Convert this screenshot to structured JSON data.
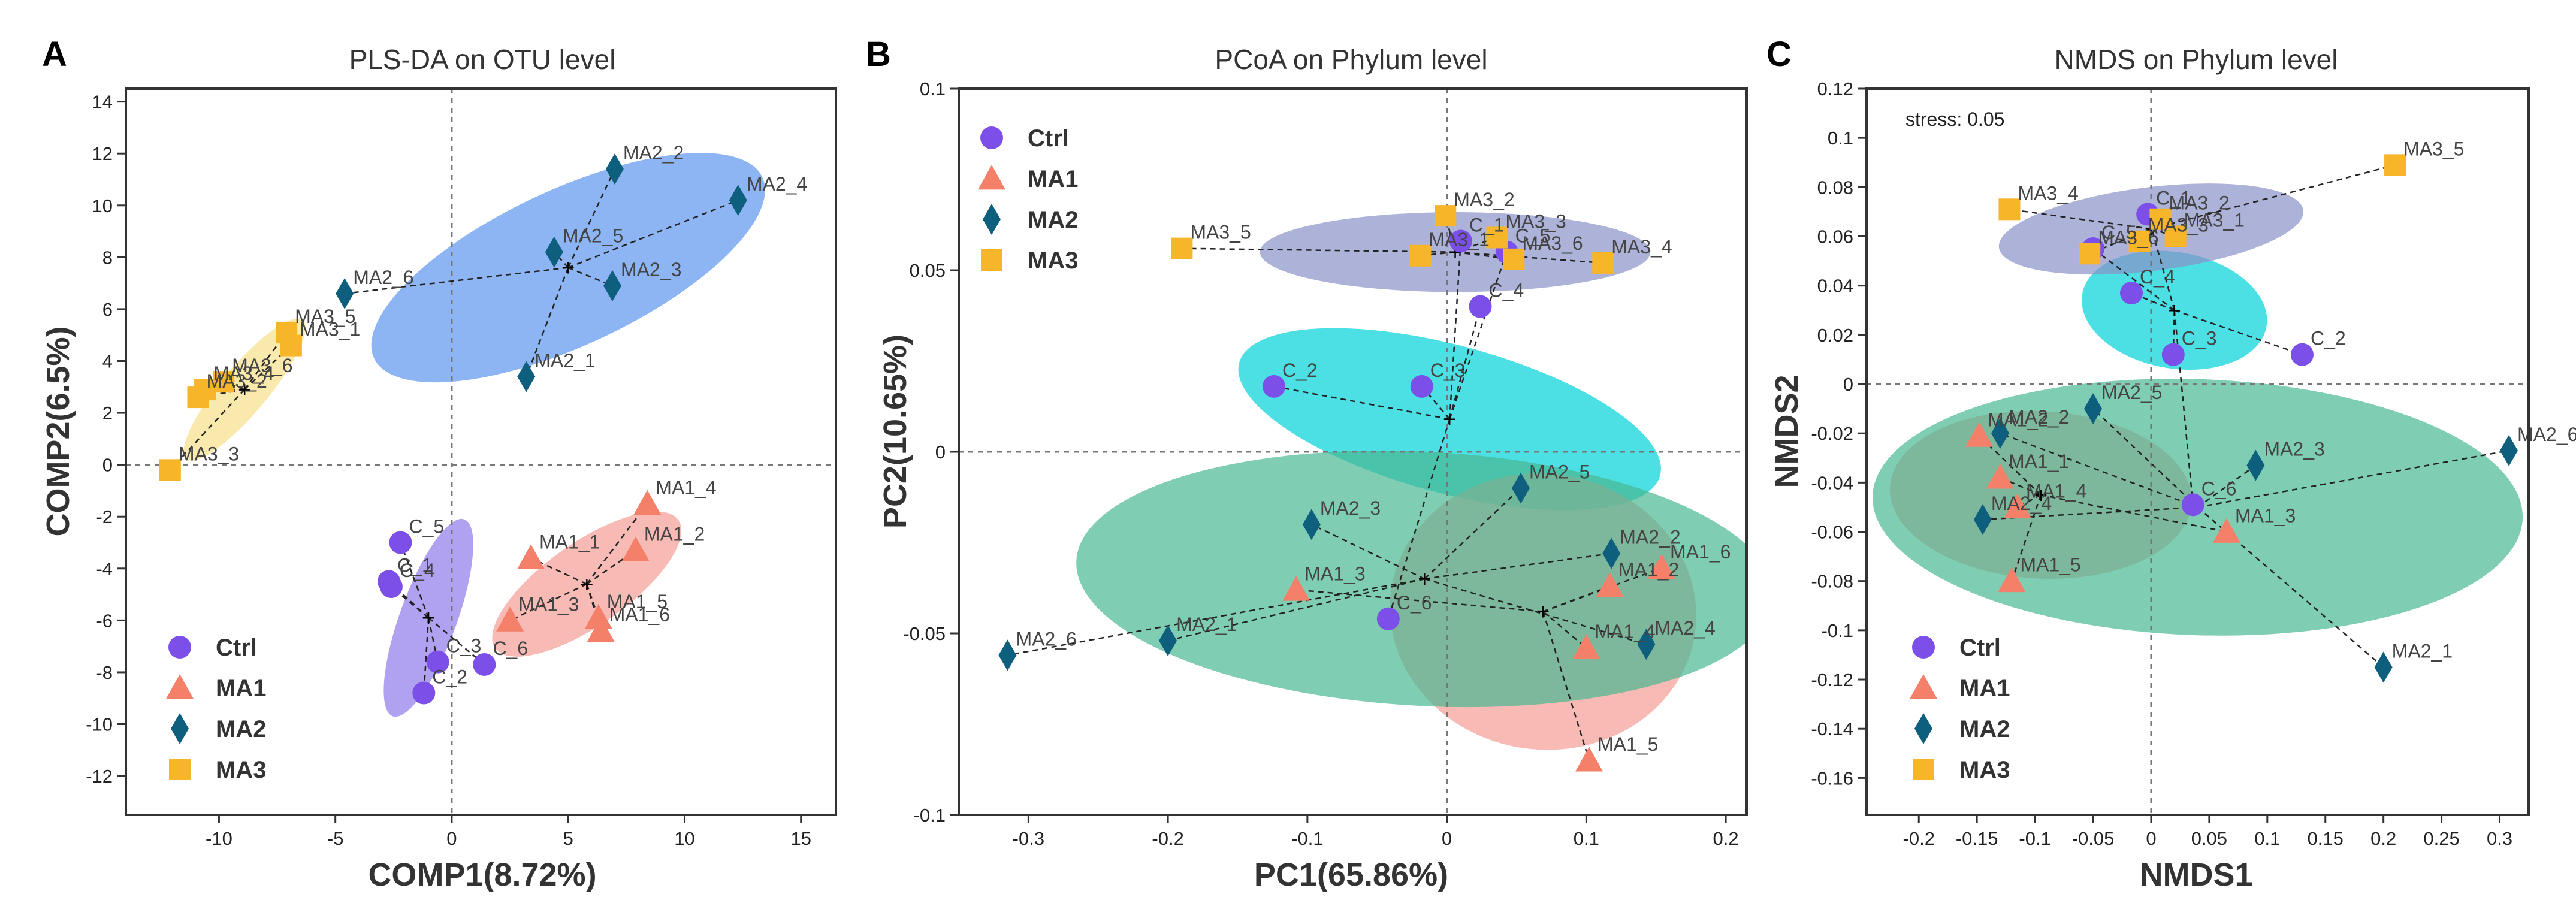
{
  "colors": {
    "Ctrl": "#7B4FE8",
    "MA1": "#F4806A",
    "MA2": "#0E5E7E",
    "MA3": "#F7B52A"
  },
  "ellipse_colors": {
    "Ctrl": "#8E7BEA",
    "MA1": "#F49C94",
    "MA2": "#48B891",
    "MA3": "#F8DF8A",
    "MA2b": "#5C95EE",
    "Ctrlb": "#00D2D8",
    "MA3b": "#8A92C8"
  },
  "chart_data": [
    {
      "type": "scatter",
      "panel": "A",
      "title": "PLS-DA on OTU level",
      "xlabel": "COMP1(8.72%)",
      "ylabel": "COMP2(6.5%)",
      "xlim": [
        -14,
        16.5
      ],
      "ylim": [
        -13.5,
        14.5
      ],
      "xticks": [
        -10,
        -5,
        0,
        5,
        10,
        15
      ],
      "yticks": [
        -12,
        -10,
        -8,
        -6,
        -4,
        -2,
        0,
        2,
        4,
        6,
        8,
        10,
        12,
        14
      ],
      "legend_position": "bottom-left",
      "series": [
        {
          "name": "Ctrl",
          "centroid": [
            -1.0,
            -5.9
          ],
          "ellipse": {
            "cx": -1.0,
            "cy": -5.9,
            "rx": 4.5,
            "ry": 1.1,
            "angle": 70,
            "color": "Ctrl"
          },
          "points": [
            {
              "label": "C_5",
              "x": -2.2,
              "y": -3.0
            },
            {
              "label": "C_1",
              "x": -2.7,
              "y": -4.5
            },
            {
              "label": "C_4",
              "x": -2.6,
              "y": -4.7
            },
            {
              "label": "C_3",
              "x": -0.6,
              "y": -7.6
            },
            {
              "label": "C_2",
              "x": -1.2,
              "y": -8.8
            },
            {
              "label": "C_6",
              "x": 1.4,
              "y": -7.7
            }
          ]
        },
        {
          "name": "MA1",
          "centroid": [
            5.8,
            -4.6
          ],
          "ellipse": {
            "cx": 5.8,
            "cy": -4.6,
            "rx": 4.8,
            "ry": 1.6,
            "angle": 35,
            "color": "MA1"
          },
          "points": [
            {
              "label": "MA1_4",
              "x": 8.4,
              "y": -1.5
            },
            {
              "label": "MA1_1",
              "x": 3.4,
              "y": -3.6
            },
            {
              "label": "MA1_2",
              "x": 7.9,
              "y": -3.3
            },
            {
              "label": "MA1_3",
              "x": 2.5,
              "y": -6.0
            },
            {
              "label": "MA1_5",
              "x": 6.3,
              "y": -5.9
            },
            {
              "label": "MA1_6",
              "x": 6.4,
              "y": -6.4
            }
          ]
        },
        {
          "name": "MA2",
          "centroid": [
            5.0,
            7.6
          ],
          "ellipse": {
            "cx": 5.0,
            "cy": 7.6,
            "rx": 9.2,
            "ry": 3.0,
            "angle": 25,
            "color": "MA2b"
          },
          "points": [
            {
              "label": "MA2_2",
              "x": 7.0,
              "y": 11.4
            },
            {
              "label": "MA2_4",
              "x": 12.3,
              "y": 10.2
            },
            {
              "label": "MA2_5",
              "x": 4.4,
              "y": 8.2
            },
            {
              "label": "MA2_3",
              "x": 6.9,
              "y": 6.9
            },
            {
              "label": "MA2_6",
              "x": -4.6,
              "y": 6.6
            },
            {
              "label": "MA2_1",
              "x": 3.2,
              "y": 3.4
            }
          ]
        },
        {
          "name": "MA3",
          "centroid": [
            -8.9,
            2.9
          ],
          "ellipse": {
            "cx": -8.9,
            "cy": 2.9,
            "rx": 3.9,
            "ry": 0.9,
            "angle": 50,
            "color": "MA3"
          },
          "points": [
            {
              "label": "MA3_5",
              "x": -7.1,
              "y": 5.1
            },
            {
              "label": "MA3_1",
              "x": -6.9,
              "y": 4.6
            },
            {
              "label": "MA3_4",
              "x": -10.6,
              "y": 2.9
            },
            {
              "label": "MA3_6",
              "x": -9.8,
              "y": 3.2
            },
            {
              "label": "MA3_2",
              "x": -10.9,
              "y": 2.6
            },
            {
              "label": "MA3_3",
              "x": -12.1,
              "y": -0.2
            }
          ]
        }
      ]
    },
    {
      "type": "scatter",
      "panel": "B",
      "title": "PCoA on Phylum level",
      "xlabel": "PC1(65.86%)",
      "ylabel": "PC2(10.65%)",
      "xlim": [
        -0.35,
        0.215
      ],
      "ylim": [
        -0.1,
        0.1
      ],
      "xticks": [
        -0.3,
        -0.2,
        -0.1,
        0,
        0.1,
        0.2
      ],
      "yticks": [
        -0.1,
        -0.05,
        0,
        0.05,
        0.1
      ],
      "legend_position": "top-left",
      "series": [
        {
          "name": "Ctrl",
          "centroid": [
            0.002,
            0.009
          ],
          "ellipse": {
            "cx": 0.002,
            "cy": 0.009,
            "rx": 0.053,
            "ry": 0.06,
            "angle": 75,
            "color": "Ctrlb"
          },
          "points": [
            {
              "label": "C_1",
              "x": 0.01,
              "y": 0.058
            },
            {
              "label": "C_5",
              "x": 0.043,
              "y": 0.055
            },
            {
              "label": "C_4",
              "x": 0.024,
              "y": 0.04
            },
            {
              "label": "C_3",
              "x": -0.018,
              "y": 0.018
            },
            {
              "label": "C_2",
              "x": -0.124,
              "y": 0.018
            },
            {
              "label": "C_6",
              "x": -0.042,
              "y": -0.046
            }
          ]
        },
        {
          "name": "MA1",
          "centroid": [
            0.069,
            -0.044
          ],
          "ellipse": {
            "cx": 0.069,
            "cy": -0.044,
            "rx": 0.11,
            "ry": 0.038,
            "angle": -8,
            "color": "MA1"
          },
          "points": [
            {
              "label": "MA1_3",
              "x": -0.108,
              "y": -0.038
            },
            {
              "label": "MA1_4",
              "x": 0.1,
              "y": -0.054
            },
            {
              "label": "MA1_2",
              "x": 0.117,
              "y": -0.037
            },
            {
              "label": "MA1_6",
              "x": 0.154,
              "y": -0.032
            },
            {
              "label": "MA1_5",
              "x": 0.102,
              "y": -0.085
            }
          ]
        },
        {
          "name": "MA2",
          "centroid": [
            -0.016,
            -0.035
          ],
          "ellipse": {
            "cx": -0.016,
            "cy": -0.035,
            "rx": 0.25,
            "ry": 0.035,
            "angle": -3,
            "color": "MA2"
          },
          "points": [
            {
              "label": "MA2_5",
              "x": 0.053,
              "y": -0.01
            },
            {
              "label": "MA2_3",
              "x": -0.097,
              "y": -0.02
            },
            {
              "label": "MA2_2",
              "x": 0.118,
              "y": -0.028
            },
            {
              "label": "MA2_1",
              "x": -0.2,
              "y": -0.052
            },
            {
              "label": "MA2_6",
              "x": -0.315,
              "y": -0.056
            },
            {
              "label": "MA2_4",
              "x": 0.143,
              "y": -0.053
            }
          ]
        },
        {
          "name": "MA3",
          "centroid": [
            0.006,
            0.055
          ],
          "ellipse": {
            "cx": 0.006,
            "cy": 0.055,
            "rx": 0.14,
            "ry": 0.011,
            "angle": 0,
            "color": "MA3b"
          },
          "points": [
            {
              "label": "MA3_5",
              "x": -0.19,
              "y": 0.056
            },
            {
              "label": "MA3_2",
              "x": -0.001,
              "y": 0.065
            },
            {
              "label": "MA3_1",
              "x": -0.019,
              "y": 0.054
            },
            {
              "label": "MA3_3",
              "x": 0.036,
              "y": 0.059
            },
            {
              "label": "MA3_6",
              "x": 0.048,
              "y": 0.053
            },
            {
              "label": "MA3_4",
              "x": 0.112,
              "y": 0.052
            }
          ]
        }
      ]
    },
    {
      "type": "scatter",
      "panel": "C",
      "title": "NMDS on Phylum level",
      "xlabel": "NMDS1",
      "ylabel": "NMDS2",
      "annotation": "stress: 0.05",
      "xlim": [
        -0.245,
        0.325
      ],
      "ylim": [
        -0.175,
        0.12
      ],
      "xticks": [
        -0.2,
        -0.15,
        -0.1,
        -0.05,
        0,
        0.05,
        0.1,
        0.15,
        0.2,
        0.25,
        0.3
      ],
      "yticks": [
        -0.16,
        -0.14,
        -0.12,
        -0.1,
        -0.08,
        -0.06,
        -0.04,
        -0.02,
        0,
        0.02,
        0.04,
        0.06,
        0.08,
        0.1,
        0.12
      ],
      "legend_position": "bottom-left",
      "series": [
        {
          "name": "Ctrl",
          "centroid": [
            0.02,
            0.03
          ],
          "ellipse": {
            "cx": 0.02,
            "cy": 0.03,
            "rx": 0.05,
            "ry": 0.038,
            "angle": 80,
            "color": "Ctrlb"
          },
          "points": [
            {
              "label": "C_1",
              "x": -0.003,
              "y": 0.069
            },
            {
              "label": "C_4",
              "x": -0.017,
              "y": 0.037
            },
            {
              "label": "C_3",
              "x": 0.019,
              "y": 0.012
            },
            {
              "label": "C_2",
              "x": 0.13,
              "y": 0.012
            },
            {
              "label": "C_5",
              "x": -0.05,
              "y": 0.055
            },
            {
              "label": "C_6",
              "x": 0.036,
              "y": -0.049
            }
          ]
        },
        {
          "name": "MA1",
          "centroid": [
            -0.095,
            -0.045
          ],
          "ellipse": {
            "cx": -0.095,
            "cy": -0.045,
            "rx": 0.13,
            "ry": 0.034,
            "angle": -3,
            "color": "MA1"
          },
          "points": [
            {
              "label": "MA1_2",
              "x": -0.148,
              "y": -0.021
            },
            {
              "label": "MA1_1",
              "x": -0.13,
              "y": -0.038
            },
            {
              "label": "MA1_4",
              "x": -0.115,
              "y": -0.05
            },
            {
              "label": "MA1_3",
              "x": 0.065,
              "y": -0.06
            },
            {
              "label": "MA1_5",
              "x": -0.12,
              "y": -0.08
            }
          ]
        },
        {
          "name": "MA2",
          "centroid": [
            0.04,
            -0.05
          ],
          "ellipse": {
            "cx": 0.04,
            "cy": -0.05,
            "rx": 0.28,
            "ry": 0.052,
            "angle": -2,
            "color": "MA2"
          },
          "points": [
            {
              "label": "MA2_5",
              "x": -0.05,
              "y": -0.01
            },
            {
              "label": "MA2_2",
              "x": -0.13,
              "y": -0.02
            },
            {
              "label": "MA2_3",
              "x": 0.09,
              "y": -0.033
            },
            {
              "label": "MA2_6",
              "x": 0.308,
              "y": -0.027
            },
            {
              "label": "MA2_4",
              "x": -0.145,
              "y": -0.055
            },
            {
              "label": "MA2_1",
              "x": 0.2,
              "y": -0.115
            }
          ]
        },
        {
          "name": "MA3",
          "centroid": [
            0.0,
            0.063
          ],
          "ellipse": {
            "cx": 0.0,
            "cy": 0.063,
            "rx": 0.132,
            "ry": 0.017,
            "angle": 7,
            "color": "MA3b"
          },
          "points": [
            {
              "label": "MA3_4",
              "x": -0.122,
              "y": 0.071
            },
            {
              "label": "MA3_5",
              "x": 0.21,
              "y": 0.089
            },
            {
              "label": "MA3_2",
              "x": 0.008,
              "y": 0.067
            },
            {
              "label": "MA3_1",
              "x": 0.021,
              "y": 0.06
            },
            {
              "label": "MA3_3",
              "x": -0.01,
              "y": 0.058
            },
            {
              "label": "MA3_6",
              "x": -0.053,
              "y": 0.053
            }
          ]
        }
      ]
    }
  ]
}
